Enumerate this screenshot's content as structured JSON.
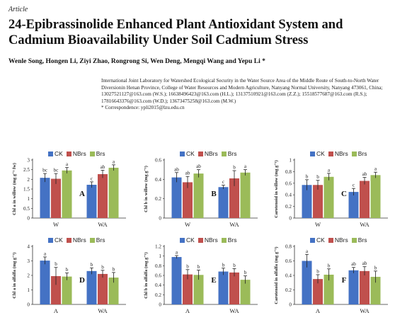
{
  "article_type": "Article",
  "title": "24-Epibrassinolide Enhanced Plant Antioxidant System and Cadmium Bioavailability Under Soil Cadmium Stress",
  "authors": "Wenle Song, Hongen Li, Ziyi Zhao, Rongrong Si, Wen Deng, Mengqi Wang and Yepu Li *",
  "affiliation": "International Joint Laboratory for Watershed Ecological Security in the Water Source Area of the Middle Route of South-to-North Water Diversionin Henan Province, College of Water Resources and Modern Agriculture, Nanyang Normal University, Nanyang 473061, China; 13027521127@163.com (W.S.); 16638496423@163.com (H.L.); 13137510921@163.com (Z.Z.); 15518577687@163.com (R.S.); 17816643376@163.com (W.D.); 13673475258@163.com (M.W.)",
  "correspondence": "* Correspondence: ypli2015@lzu.edu.cn",
  "colors": {
    "CK": "#4472c4",
    "NBrs": "#c0504d",
    "Brs": "#9bbb59"
  },
  "chart_data": [
    {
      "type": "bar",
      "panel": "A",
      "ylabel": "Chl a in willow (mg g⁻¹ fw)",
      "categories": [
        "W",
        "WA"
      ],
      "ylim": [
        0,
        3
      ],
      "yticks": [
        "0",
        "0.5",
        "1",
        "1.5",
        "2",
        "2.5",
        "3"
      ],
      "series": [
        {
          "name": "CK",
          "values": [
            2.08,
            1.72
          ],
          "errors": [
            0.22,
            0.15
          ],
          "letters": [
            "bc",
            "c"
          ]
        },
        {
          "name": "NBrs",
          "values": [
            2.03,
            2.27
          ],
          "errors": [
            0.27,
            0.2
          ],
          "letters": [
            "bc",
            "ab"
          ]
        },
        {
          "name": "Brs",
          "values": [
            2.46,
            2.6
          ],
          "errors": [
            0.15,
            0.15
          ],
          "letters": [
            "a",
            "a"
          ]
        }
      ],
      "legend": "top"
    },
    {
      "type": "bar",
      "panel": "B",
      "ylabel": "Chl b in willow (mg g⁻¹)",
      "categories": [
        "W",
        "WA"
      ],
      "ylim": [
        0,
        0.6
      ],
      "yticks": [
        "0",
        "0.2",
        "0.4",
        "0.6"
      ],
      "series": [
        {
          "name": "CK",
          "values": [
            0.42,
            0.32
          ],
          "errors": [
            0.05,
            0.02
          ],
          "letters": [
            "ab",
            "c"
          ]
        },
        {
          "name": "NBrs",
          "values": [
            0.37,
            0.41
          ],
          "errors": [
            0.06,
            0.08
          ],
          "letters": [
            "ab",
            "b"
          ]
        },
        {
          "name": "Brs",
          "values": [
            0.46,
            0.47
          ],
          "errors": [
            0.04,
            0.03
          ],
          "letters": [
            "ab",
            "a"
          ]
        }
      ],
      "legend": "top"
    },
    {
      "type": "bar",
      "panel": "C",
      "ylabel": "Carotenoid in willow (mg g⁻¹)",
      "categories": [
        "W",
        "WA"
      ],
      "ylim": [
        0,
        1
      ],
      "yticks": [
        "0",
        "0.2",
        "0.4",
        "0.6",
        "0.8",
        "1"
      ],
      "series": [
        {
          "name": "CK",
          "values": [
            0.57,
            0.45
          ],
          "errors": [
            0.09,
            0.06
          ],
          "letters": [
            "b",
            "c"
          ]
        },
        {
          "name": "NBrs",
          "values": [
            0.57,
            0.64
          ],
          "errors": [
            0.08,
            0.06
          ],
          "letters": [
            "b",
            "ab"
          ]
        },
        {
          "name": "Brs",
          "values": [
            0.71,
            0.74
          ],
          "errors": [
            0.06,
            0.05
          ],
          "letters": [
            "a",
            "a"
          ]
        }
      ],
      "legend": "top"
    },
    {
      "type": "bar",
      "panel": "D",
      "ylabel": "Chl a in alfalfa (mg g⁻¹)",
      "categories": [
        "A",
        "WA"
      ],
      "ylim": [
        0,
        4
      ],
      "yticks": [
        "0",
        "1",
        "2",
        "3",
        "4"
      ],
      "series": [
        {
          "name": "CK",
          "values": [
            3.02,
            2.3
          ],
          "errors": [
            0.25,
            0.22
          ],
          "letters": [
            "a",
            "b"
          ]
        },
        {
          "name": "NBrs",
          "values": [
            1.95,
            2.1
          ],
          "errors": [
            0.6,
            0.25
          ],
          "letters": [
            "b",
            "b"
          ]
        },
        {
          "name": "Brs",
          "values": [
            1.92,
            1.85
          ],
          "errors": [
            0.25,
            0.35
          ],
          "letters": [
            "b",
            "b"
          ]
        }
      ],
      "legend": "top"
    },
    {
      "type": "bar",
      "panel": "E",
      "ylabel": "Chl b in alfalfa (mg g⁻¹)",
      "categories": [
        "A",
        "WA"
      ],
      "ylim": [
        0,
        1.2
      ],
      "yticks": [
        "0",
        "0.2",
        "0.4",
        "0.6",
        "0.8",
        "1",
        "1.2"
      ],
      "series": [
        {
          "name": "CK",
          "values": [
            0.98,
            0.68
          ],
          "errors": [
            0.03,
            0.07
          ],
          "letters": [
            "a",
            "b"
          ]
        },
        {
          "name": "NBrs",
          "values": [
            0.62,
            0.66
          ],
          "errors": [
            0.1,
            0.08
          ],
          "letters": [
            "b",
            "b"
          ]
        },
        {
          "name": "Brs",
          "values": [
            0.61,
            0.51
          ],
          "errors": [
            0.1,
            0.08
          ],
          "letters": [
            "b",
            "b"
          ]
        }
      ],
      "legend": "top"
    },
    {
      "type": "bar",
      "panel": "F",
      "ylabel": "Carotenoid in alfalfa (mg g⁻¹)",
      "categories": [
        "A",
        "WA"
      ],
      "ylim": [
        0,
        0.8
      ],
      "yticks": [
        "0",
        "0.2",
        "0.4",
        "0.6",
        "0.8"
      ],
      "series": [
        {
          "name": "CK",
          "values": [
            0.6,
            0.47
          ],
          "errors": [
            0.09,
            0.04
          ],
          "letters": [
            "a",
            "ab"
          ]
        },
        {
          "name": "NBrs",
          "values": [
            0.35,
            0.46
          ],
          "errors": [
            0.06,
            0.06
          ],
          "letters": [
            "b",
            "ab"
          ]
        },
        {
          "name": "Brs",
          "values": [
            0.41,
            0.38
          ],
          "errors": [
            0.08,
            0.08
          ],
          "letters": [
            "b",
            "b"
          ]
        }
      ],
      "legend": "top"
    }
  ]
}
